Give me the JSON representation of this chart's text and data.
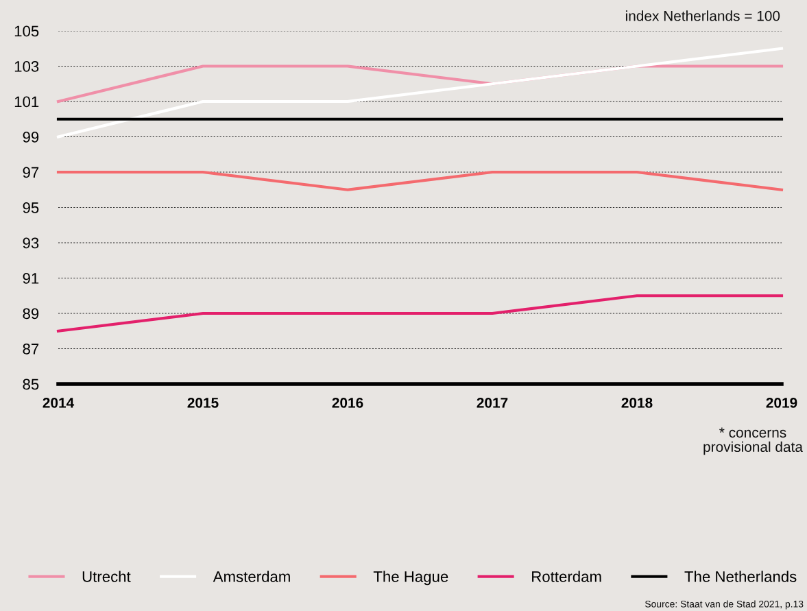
{
  "chart_data": {
    "type": "line",
    "categories": [
      "2014",
      "2015",
      "2016",
      "2017",
      "2018",
      "2019"
    ],
    "series": [
      {
        "name": "Utrecht",
        "color": "#f08fa8",
        "values": [
          101,
          103,
          103,
          102,
          103,
          103
        ]
      },
      {
        "name": "Amsterdam",
        "color": "#ffffff",
        "values": [
          99,
          101,
          101,
          102,
          103,
          104
        ]
      },
      {
        "name": "The Hague",
        "color": "#f46a6e",
        "values": [
          97,
          97,
          96,
          97,
          97,
          96
        ]
      },
      {
        "name": "Rotterdam",
        "color": "#e3206b",
        "values": [
          88,
          89,
          89,
          89,
          90,
          90
        ]
      },
      {
        "name": "The Netherlands",
        "color": "#000000",
        "values": [
          100,
          100,
          100,
          100,
          100,
          100
        ]
      }
    ],
    "ylim": [
      85,
      105
    ],
    "yticks": [
      85,
      87,
      89,
      91,
      93,
      95,
      97,
      99,
      101,
      103,
      105
    ],
    "ref_lines": [
      {
        "axis": "y",
        "value": 85,
        "color": "#000000"
      }
    ],
    "grid": "y",
    "legend": "bottom",
    "marker": "none",
    "line_style": "solid",
    "annotations": [
      "index Netherlands = 100",
      "* concerns\nprovisional data",
      "Source: Staat van de Stad 2021, p.13"
    ]
  }
}
